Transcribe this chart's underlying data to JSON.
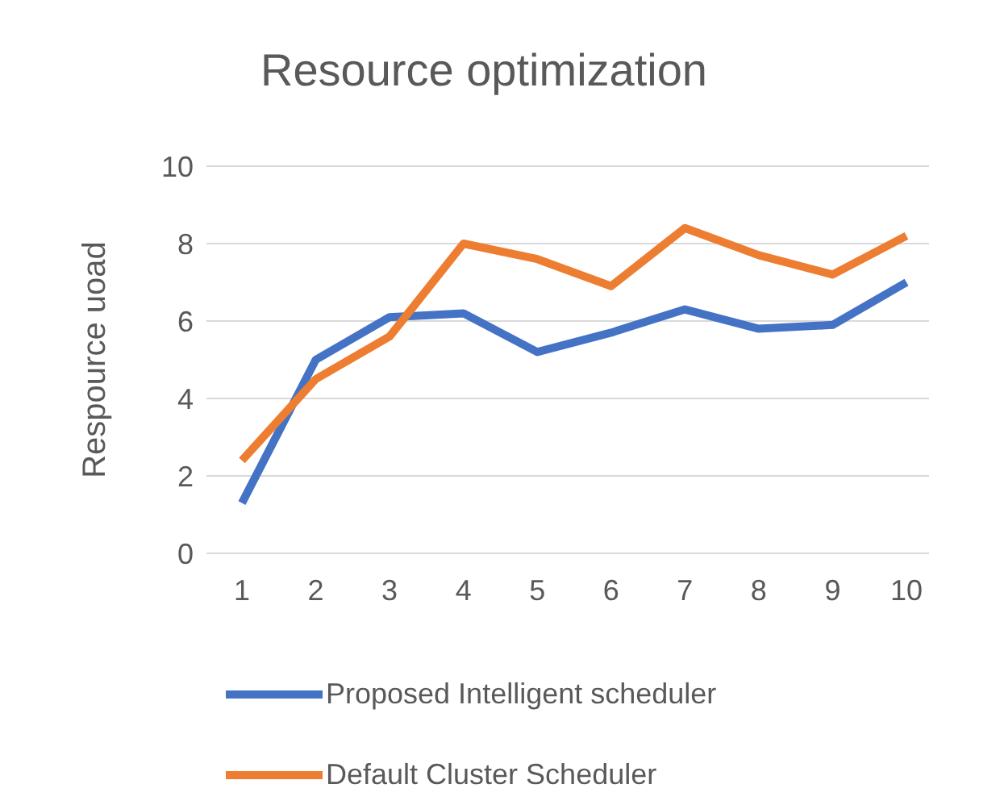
{
  "chart_data": {
    "type": "line",
    "title": "Resource optimization",
    "ylabel": "Respource uoad",
    "categories": [
      "1",
      "2",
      "3",
      "4",
      "5",
      "6",
      "7",
      "8",
      "9",
      "10"
    ],
    "series": [
      {
        "name": "Proposed Intelligent scheduler",
        "color": "#4472c4",
        "values": [
          1.3,
          5.0,
          6.1,
          6.2,
          5.2,
          5.7,
          6.3,
          5.8,
          5.9,
          7.0
        ]
      },
      {
        "name": "Default Cluster Scheduler",
        "color": "#ed7d31",
        "values": [
          2.4,
          4.5,
          5.6,
          8.0,
          7.6,
          6.9,
          8.4,
          7.7,
          7.2,
          8.2
        ]
      }
    ],
    "ylim": [
      0,
      10
    ],
    "yticks": [
      0,
      2,
      4,
      6,
      8,
      10
    ],
    "grid": "y",
    "legend": "bottom",
    "marker": "none",
    "line_style": "solid"
  }
}
